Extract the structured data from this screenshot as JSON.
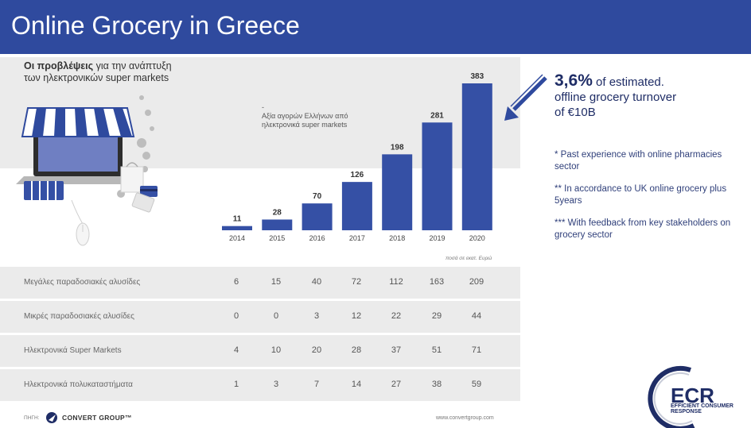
{
  "header": {
    "title": "Online Grocery in Greece"
  },
  "subtitle": {
    "bold": "Οι προβλέψεις",
    "rest1": " για την ανάπτυξη",
    "line2": "των ηλεκτρονικών super markets"
  },
  "axis_note": {
    "dash": "-",
    "text": "Αξία αγορών Ελλήνων από ηλεκτρονικά super markets"
  },
  "units_note": "ποσά σε εκατ. Ευρώ",
  "chart_data": {
    "type": "bar",
    "categories": [
      "2014",
      "2015",
      "2016",
      "2017",
      "2018",
      "2019",
      "2020"
    ],
    "values": [
      11,
      28,
      70,
      126,
      198,
      281,
      383
    ],
    "title": "",
    "xlabel": "",
    "ylabel": "",
    "ylim": [
      0,
      383
    ],
    "grid": false,
    "color": "#3550a5"
  },
  "table": {
    "rows": [
      {
        "label": "Μεγάλες παραδοσιακές αλυσίδες",
        "values": [
          6,
          15,
          40,
          72,
          112,
          163,
          209
        ]
      },
      {
        "label": "Μικρές παραδοσιακές αλυσίδες",
        "values": [
          0,
          0,
          3,
          12,
          22,
          29,
          44
        ]
      },
      {
        "label": "Ηλεκτρονικά Super Markets",
        "values": [
          4,
          10,
          20,
          28,
          37,
          51,
          71
        ]
      },
      {
        "label": "Ηλεκτρονικά πολυκαταστήματα",
        "values": [
          1,
          3,
          7,
          14,
          27,
          38,
          59
        ]
      }
    ]
  },
  "right_panel": {
    "pct": "3,6%",
    "line1": " of estimated.",
    "line2": "offline grocery turnover",
    "line3": "of €10B",
    "notes": [
      "* Past experience with online pharmacies sector",
      "** In accordance to UK online grocery plus 5years",
      "*** With feedback from key stakeholders on grocery sector"
    ]
  },
  "footer": {
    "source_label": "ΠΗΓΗ:",
    "brand": "CONVERT GROUP™",
    "url": "www.convertgroup.com"
  },
  "logo": {
    "text": "ECR",
    "sub": "EFFICIENT CONSUMER RESPONSE"
  },
  "colors": {
    "header": "#2f4a9e",
    "bar": "#3550a5",
    "accent_navy": "#1f2d66",
    "grey_panel": "#ebebeb"
  },
  "icons": [
    "shop-illustration-icon",
    "arrow-icon",
    "convert-group-logo-icon",
    "ecr-logo-icon"
  ]
}
